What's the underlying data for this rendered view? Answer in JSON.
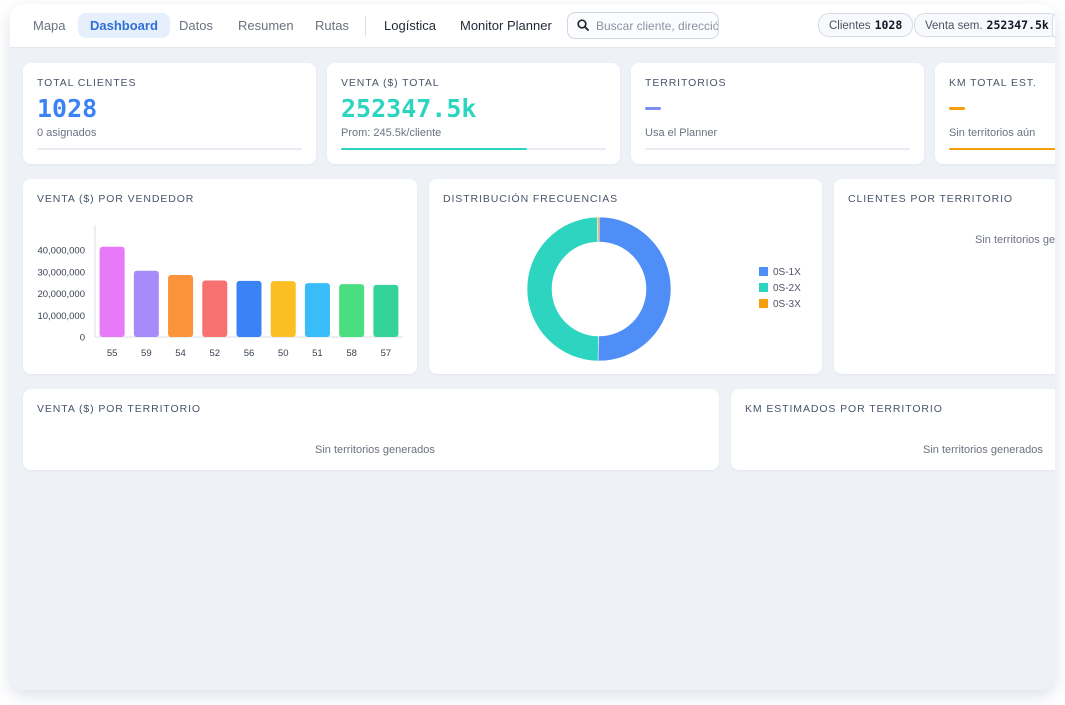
{
  "nav": {
    "tabs": [
      {
        "label": "Mapa",
        "active": false
      },
      {
        "label": "Dashboard",
        "active": true
      },
      {
        "label": "Datos",
        "active": false
      },
      {
        "label": "Resumen",
        "active": false
      },
      {
        "label": "Rutas",
        "active": false
      }
    ],
    "logistica": "Logística",
    "monitor": "Monitor Planner",
    "search_placeholder": "Buscar cliente, dirección"
  },
  "header_stats": {
    "clientes_label": "Clientes",
    "clientes_value": "1028",
    "venta_label": "Venta sem.",
    "venta_value": "252347.5k"
  },
  "kpis": {
    "total_clientes": {
      "label": "TOTAL CLIENTES",
      "value": "1028",
      "sub": "0 asignados",
      "color": "#3b82f6",
      "progress": 0
    },
    "venta_total": {
      "label": "VENTA ($) TOTAL",
      "value": "252347.5k",
      "sub": "Prom: 245.5k/cliente",
      "color": "#2dd4bf",
      "progress": 0.7
    },
    "territorios": {
      "label": "TERRITORIOS",
      "value": "—",
      "sub": "Usa el Planner",
      "color": "#7b8ff0",
      "progress": 0
    },
    "km_total": {
      "label": "KM TOTAL EST.",
      "value": "—",
      "sub": "Sin territorios aún",
      "color": "#f59e0b",
      "progress": 1
    }
  },
  "charts": {
    "venta_vendedor_title": "VENTA ($) POR VENDEDOR",
    "frecuencias_title": "DISTRIBUCIÓN FRECUENCIAS",
    "clientes_territorio_title": "CLIENTES POR TERRITORIO",
    "clientes_territorio_empty": "Sin territorios generados",
    "venta_territorio_title": "VENTA ($) POR TERRITORIO",
    "venta_territorio_empty": "Sin territorios generados",
    "km_territorio_title": "KM ESTIMADOS POR TERRITORIO",
    "km_territorio_empty": "Sin territorios generados"
  },
  "chart_data": [
    {
      "type": "bar",
      "title": "VENTA ($) POR VENDEDOR",
      "categories": [
        "55",
        "59",
        "54",
        "52",
        "56",
        "50",
        "51",
        "58",
        "57"
      ],
      "values": [
        41500000,
        30500000,
        28500000,
        26000000,
        25800000,
        25700000,
        24800000,
        24300000,
        24000000
      ],
      "colors": [
        "#e879f9",
        "#a78bfa",
        "#fb923c",
        "#f87171",
        "#3b82f6",
        "#fbbf24",
        "#38bdf8",
        "#4ade80",
        "#34d399"
      ],
      "yticks": [
        "40,000,000",
        "30,000,000",
        "20,000,000",
        "10,000,000",
        "0"
      ],
      "ylim": [
        0,
        46000000
      ]
    },
    {
      "type": "pie",
      "title": "DISTRIBUCIÓN FRECUENCIAS",
      "labels": [
        "0S-1X",
        "0S-2X",
        "0S-3X"
      ],
      "values": [
        50.2,
        49.4,
        0.4
      ],
      "colors": [
        "#4f8ef7",
        "#2dd4bf",
        "#f59e0b"
      ]
    }
  ]
}
